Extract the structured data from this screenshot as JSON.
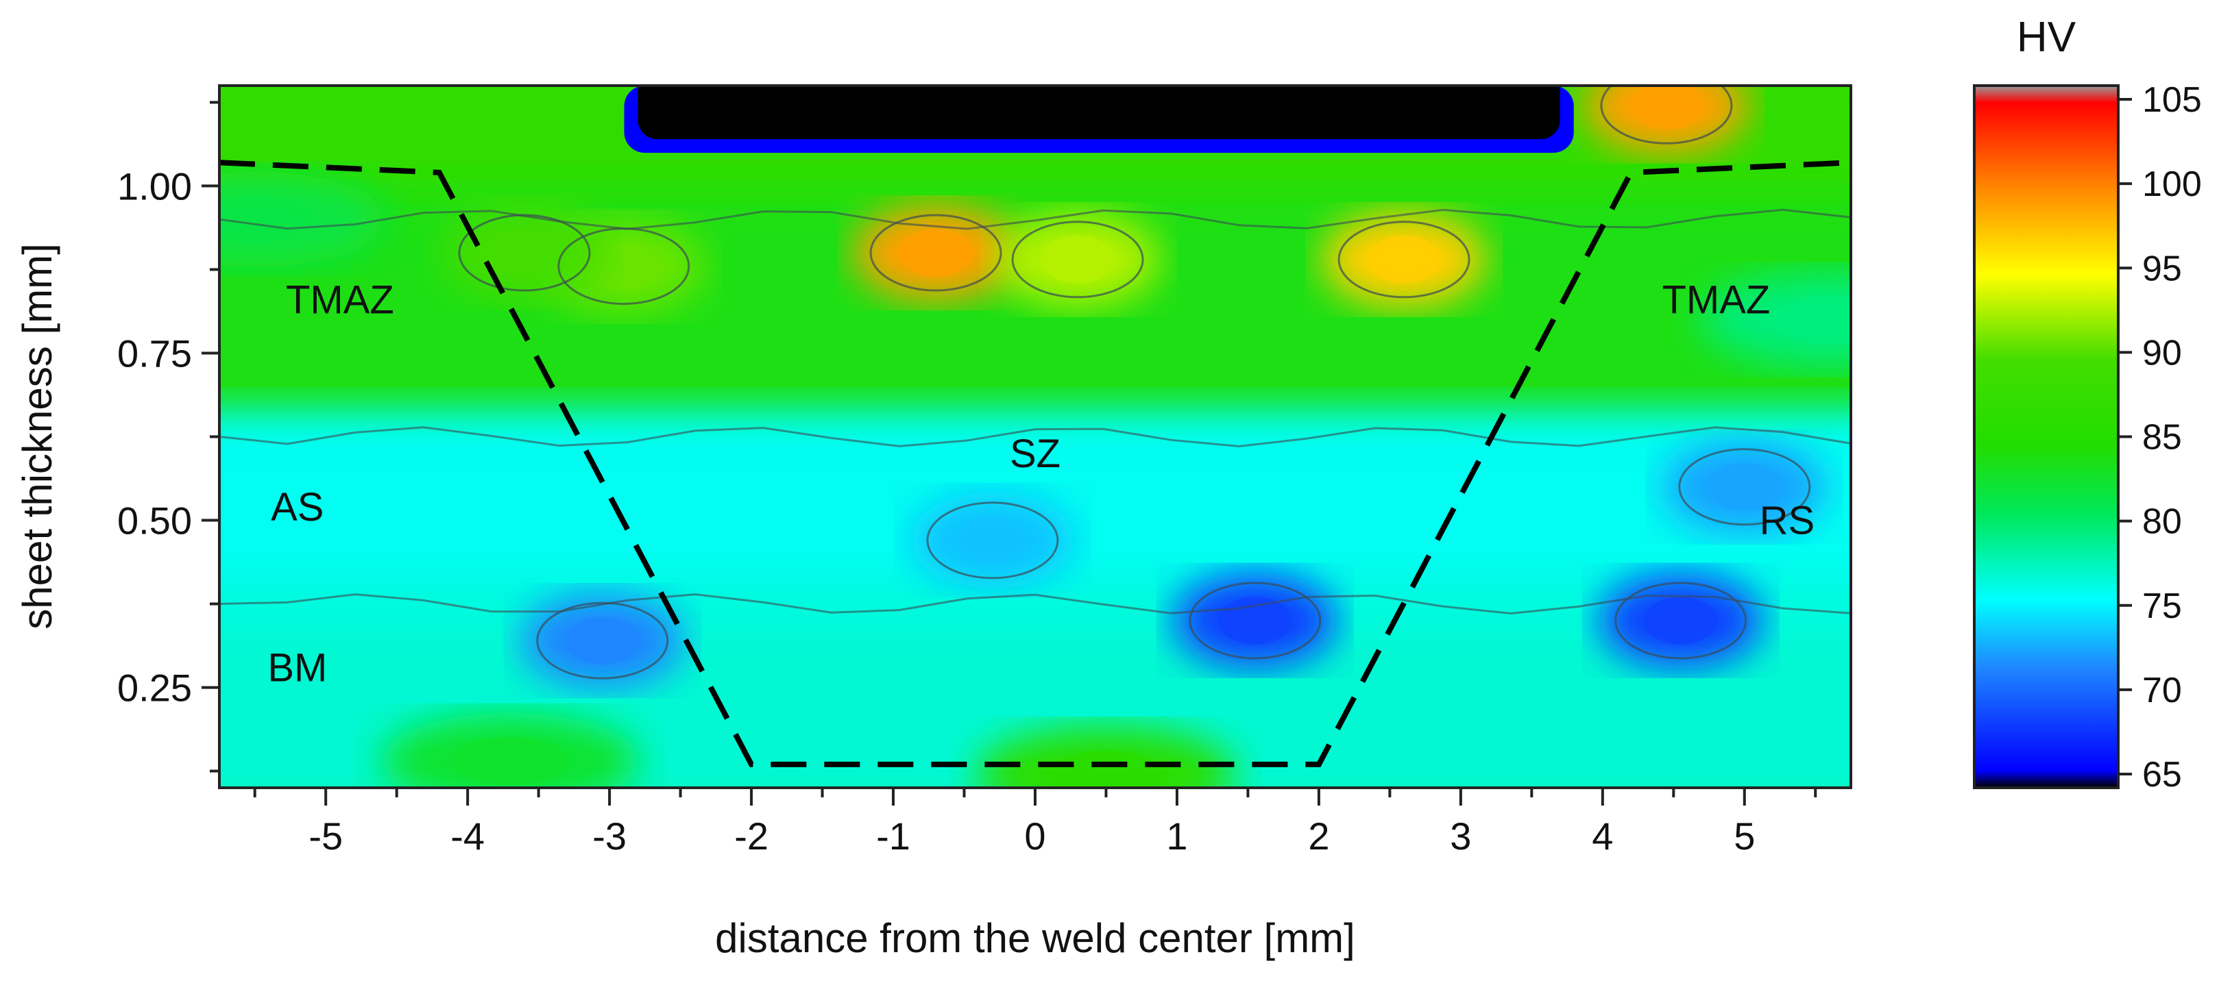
{
  "chart_data": {
    "type": "heatmap",
    "title": "",
    "xlabel": "distance from the weld center [mm]",
    "ylabel": "sheet thickness [mm]",
    "xlim": [
      -5.75,
      5.75
    ],
    "ylim": [
      0.1,
      1.15
    ],
    "x_ticks": [
      -5,
      -4,
      -3,
      -2,
      -1,
      0,
      1,
      2,
      3,
      4,
      5
    ],
    "x_tick_labels": [
      "-5",
      "-4",
      "-3",
      "-2",
      "-1",
      "0",
      "1",
      "2",
      "3",
      "4",
      "5"
    ],
    "y_ticks": [
      0.25,
      0.5,
      0.75,
      1.0
    ],
    "y_tick_labels": [
      "0.25",
      "0.50",
      "0.75",
      "1.00"
    ],
    "colorbar": {
      "title": "HV",
      "range": [
        65,
        105
      ],
      "ticks": [
        65,
        70,
        75,
        80,
        85,
        90,
        95,
        100,
        105
      ],
      "tick_labels": [
        "65",
        "70",
        "75",
        "80",
        "85",
        "90",
        "95",
        "100",
        "105"
      ],
      "color_stops": [
        {
          "value": 65,
          "color": "#000000"
        },
        {
          "value": 66,
          "color": "#0000ff"
        },
        {
          "value": 72,
          "color": "#1f86ff"
        },
        {
          "value": 76,
          "color": "#00ffff"
        },
        {
          "value": 81,
          "color": "#00e85a"
        },
        {
          "value": 85,
          "color": "#22dd00"
        },
        {
          "value": 90,
          "color": "#44dd00"
        },
        {
          "value": 95,
          "color": "#ffff00"
        },
        {
          "value": 100,
          "color": "#ff8800"
        },
        {
          "value": 105,
          "color": "#ff0000"
        },
        {
          "value": 106,
          "color": "#999999"
        }
      ]
    },
    "zone_labels": [
      {
        "text": "TMAZ",
        "x": -4.9,
        "y": 0.83
      },
      {
        "text": "TMAZ",
        "x": 4.8,
        "y": 0.83
      },
      {
        "text": "SZ",
        "x": 0.0,
        "y": 0.6
      },
      {
        "text": "AS",
        "x": -5.2,
        "y": 0.52
      },
      {
        "text": "RS",
        "x": 5.3,
        "y": 0.5
      },
      {
        "text": "BM",
        "x": -5.2,
        "y": 0.28
      }
    ],
    "boundary": {
      "style": "dashed",
      "points": [
        [
          -5.75,
          1.035
        ],
        [
          -4.2,
          1.02
        ],
        [
          -2.0,
          0.135
        ],
        [
          2.0,
          0.135
        ],
        [
          4.2,
          1.02
        ],
        [
          5.75,
          1.035
        ]
      ]
    },
    "hardness_features": [
      {
        "kind": "background-top",
        "x": 0,
        "y": 1.15,
        "hv": 87
      },
      {
        "kind": "background-band",
        "x": 0,
        "y": 0.75,
        "hv": 84
      },
      {
        "kind": "background-mid",
        "x": 0,
        "y": 0.5,
        "hv": 76
      },
      {
        "kind": "background-low",
        "x": 0,
        "y": 0.25,
        "hv": 77
      },
      {
        "kind": "peak",
        "x": -0.7,
        "y": 0.9,
        "hv": 99
      },
      {
        "kind": "peak",
        "x": 2.6,
        "y": 0.89,
        "hv": 97
      },
      {
        "kind": "peak",
        "x": 0.3,
        "y": 0.89,
        "hv": 93
      },
      {
        "kind": "peak",
        "x": -2.9,
        "y": 0.88,
        "hv": 91
      },
      {
        "kind": "peak",
        "x": -3.6,
        "y": 0.9,
        "hv": 90
      },
      {
        "kind": "peak",
        "x": 4.45,
        "y": 1.12,
        "hv": 99
      },
      {
        "kind": "trough",
        "x": 1.55,
        "y": 0.35,
        "hv": 69
      },
      {
        "kind": "trough",
        "x": 4.55,
        "y": 0.35,
        "hv": 69
      },
      {
        "kind": "trough",
        "x": -3.05,
        "y": 0.32,
        "hv": 72
      },
      {
        "kind": "trough",
        "x": -0.3,
        "y": 0.47,
        "hv": 74
      },
      {
        "kind": "trough",
        "x": 5.0,
        "y": 0.55,
        "hv": 73
      },
      {
        "kind": "soft",
        "x": 0.5,
        "y": 0.12,
        "hv": 86
      },
      {
        "kind": "soft",
        "x": -3.7,
        "y": 0.14,
        "hv": 83
      },
      {
        "kind": "soft",
        "x": -5.5,
        "y": 0.95,
        "hv": 82
      },
      {
        "kind": "soft",
        "x": 5.6,
        "y": 0.8,
        "hv": 80
      },
      {
        "kind": "hole",
        "x": 0.3,
        "y": 1.13,
        "hv": 65,
        "x_from": -2.8,
        "x_to": 3.7,
        "y_from": 1.07,
        "y_to": 1.15
      }
    ]
  }
}
